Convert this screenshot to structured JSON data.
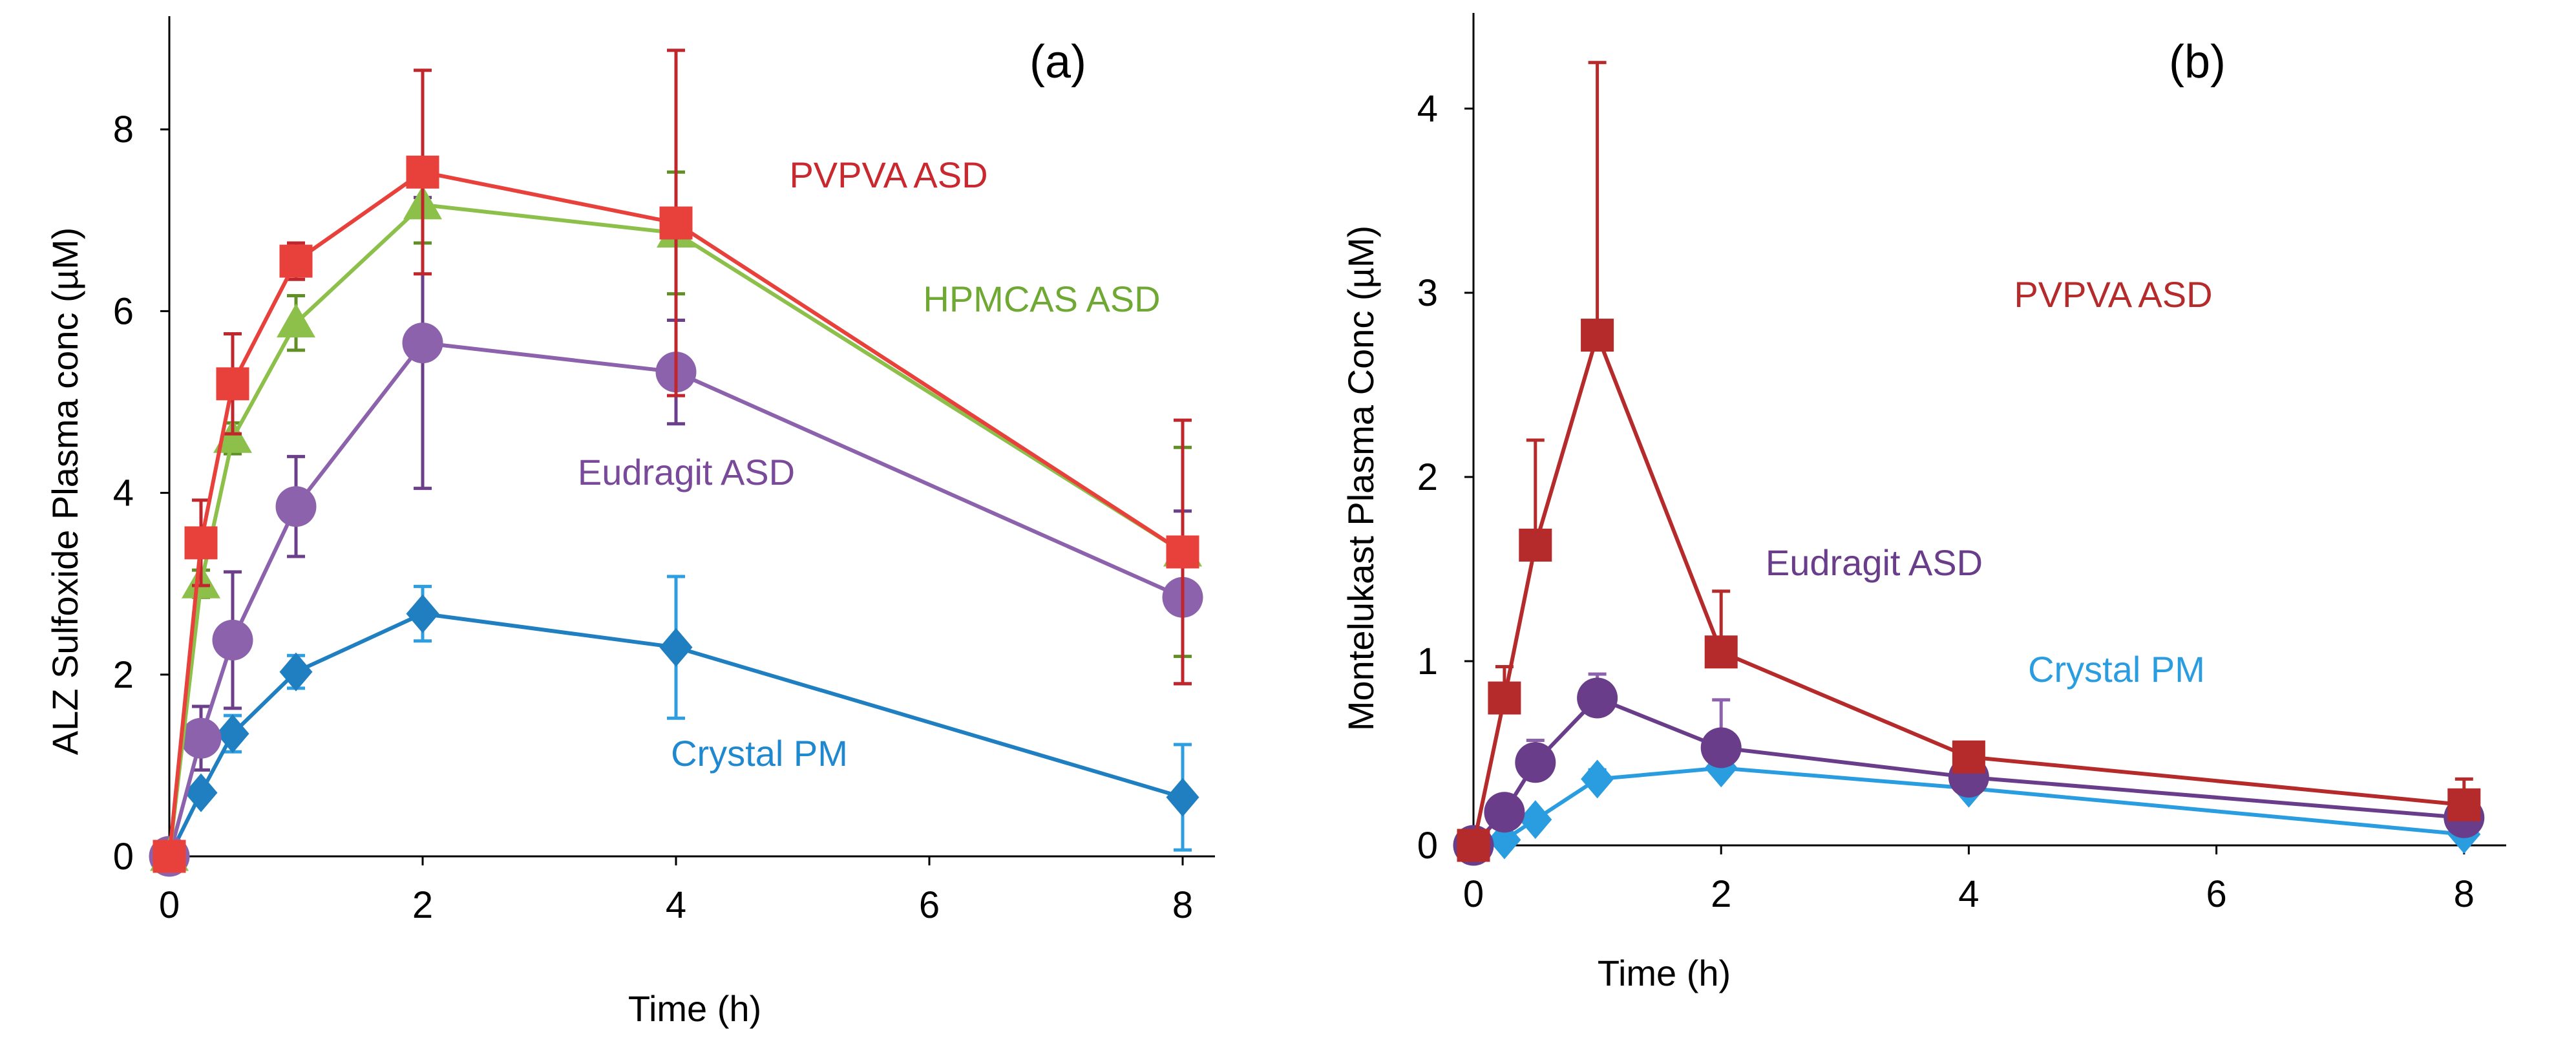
{
  "chart_data": [
    {
      "type": "line",
      "panel_label": "(a)",
      "xlabel": "Time (h)",
      "ylabel": "ALZ Sulfoxide Plasma conc (µM)",
      "xlim": [
        0,
        8.2
      ],
      "ylim": [
        0,
        9.2
      ],
      "xticks": [
        0,
        2,
        4,
        6,
        8
      ],
      "yticks": [
        0,
        2,
        4,
        6,
        8
      ],
      "grid": false,
      "x": [
        0,
        0.25,
        0.5,
        1,
        2,
        4,
        8
      ],
      "series": [
        {
          "name": "PVPVA ASD",
          "marker": "square",
          "line_color": "#e8413c",
          "err_color": "#c0272d",
          "label_color": "#c8282e",
          "values": [
            0,
            3.45,
            5.2,
            6.55,
            7.53,
            6.97,
            3.35
          ],
          "error": [
            0,
            0.47,
            0.55,
            0.2,
            1.12,
            1.9,
            1.45
          ]
        },
        {
          "name": "HPMCAS ASD",
          "marker": "triangle",
          "line_color": "#8dc04b",
          "err_color": "#5f8f25",
          "label_color": "#6fa832",
          "values": [
            0,
            3.0,
            4.6,
            5.87,
            7.17,
            6.86,
            3.35
          ],
          "error": [
            0,
            0.15,
            0.17,
            0.3,
            0.42,
            0.67,
            1.15
          ]
        },
        {
          "name": "Eudragit ASD",
          "marker": "circle",
          "line_color": "#8b62ab",
          "err_color": "#6b3f8a",
          "label_color": "#7a4a9a",
          "values": [
            0,
            1.3,
            2.38,
            3.85,
            5.65,
            5.33,
            2.85
          ],
          "error": [
            0,
            0.35,
            0.75,
            0.55,
            1.6,
            0.57,
            0.95
          ]
        },
        {
          "name": "Crystal PM",
          "marker": "diamond",
          "line_color": "#1f7fc0",
          "err_color": "#2e9ee0",
          "label_color": "#1f88cf",
          "values": [
            0,
            0.7,
            1.35,
            2.03,
            2.67,
            2.3,
            0.65
          ],
          "error": [
            0,
            0.05,
            0.2,
            0.18,
            0.3,
            0.78,
            0.58
          ]
        }
      ]
    },
    {
      "type": "line",
      "panel_label": "(b)",
      "xlabel": "Time (h)",
      "ylabel": "Montelukast Plasma Conc (µM)",
      "xlim": [
        0,
        8.3
      ],
      "ylim": [
        0,
        4.5
      ],
      "xticks": [
        0,
        2,
        4,
        6,
        8
      ],
      "yticks": [
        0,
        1,
        2,
        3,
        4
      ],
      "grid": false,
      "x": [
        0,
        0.25,
        0.5,
        1,
        2,
        4,
        8
      ],
      "series": [
        {
          "name": "PVPVA ASD",
          "marker": "square",
          "line_color": "#b52a2a",
          "err_color": "#b52a2a",
          "label_color": "#b52a2a",
          "values": [
            0,
            0.8,
            1.63,
            2.77,
            1.05,
            0.48,
            0.22
          ],
          "error": [
            0,
            0.17,
            0.57,
            1.48,
            0.33,
            0.02,
            0.14
          ]
        },
        {
          "name": "Eudragit ASD",
          "marker": "circle",
          "line_color": "#6a3d8a",
          "err_color": "#8b62ab",
          "label_color": "#6a3d8a",
          "values": [
            0,
            0.18,
            0.45,
            0.8,
            0.53,
            0.37,
            0.15
          ],
          "error": [
            0,
            0.05,
            0.12,
            0.13,
            0.26,
            0.03,
            0.02
          ]
        },
        {
          "name": "Crystal PM",
          "marker": "diamond",
          "line_color": "#2a9de0",
          "err_color": "#2a9de0",
          "label_color": "#2a9de0",
          "values": [
            0,
            0.03,
            0.14,
            0.36,
            0.42,
            0.31,
            0.06
          ],
          "error": [
            0,
            0,
            0,
            0.05,
            0,
            0,
            0
          ]
        }
      ]
    }
  ]
}
